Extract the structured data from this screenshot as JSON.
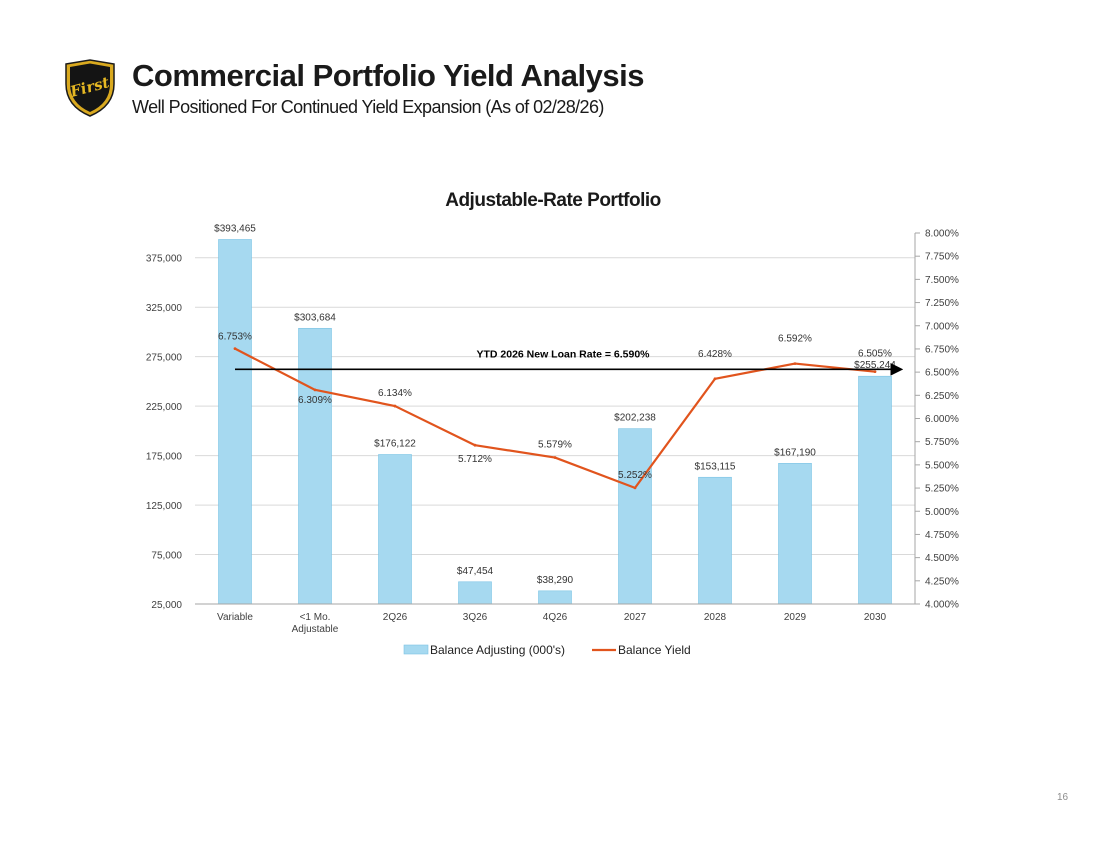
{
  "header": {
    "title": "Commercial Portfolio Yield Analysis",
    "subtitle": "Well Positioned For Continued Yield Expansion (As of 02/28/26)",
    "logo_text": "First"
  },
  "page_number": "16",
  "chart_data": {
    "type": "bar",
    "title": "Adjustable-Rate Portfolio",
    "categories": [
      "Variable",
      "<1 Mo.\nAdjustable",
      "2Q26",
      "3Q26",
      "4Q26",
      "2027",
      "2028",
      "2029",
      "2030"
    ],
    "series": [
      {
        "name": "Balance Adjusting (000's)",
        "type": "bar",
        "axis": "left",
        "color": "#a6d9f0",
        "values": [
          393465,
          303684,
          176122,
          47454,
          38290,
          202238,
          153115,
          167190,
          255244
        ],
        "labels": [
          "$393,465",
          "$303,684",
          "$176,122",
          "$47,454",
          "$38,290",
          "$202,238",
          "$153,115",
          "$167,190",
          "$255,244"
        ]
      },
      {
        "name": "Balance Yield",
        "type": "line",
        "axis": "right",
        "color": "#e1541d",
        "values": [
          6.753,
          6.309,
          6.134,
          5.712,
          5.579,
          5.252,
          6.428,
          6.592,
          6.505
        ],
        "labels": [
          "6.753%",
          "6.309%",
          "6.134%",
          "5.712%",
          "5.579%",
          "5.252%",
          "6.428%",
          "6.592%",
          "6.505%"
        ]
      }
    ],
    "left_axis": {
      "ylim": [
        25000,
        400000
      ],
      "ticks": [
        25000,
        75000,
        125000,
        175000,
        225000,
        275000,
        325000,
        375000
      ],
      "tick_labels": [
        "25,000",
        "75,000",
        "125,000",
        "175,000",
        "225,000",
        "275,000",
        "325,000",
        "375,000"
      ]
    },
    "right_axis": {
      "ylim": [
        4.0,
        8.0
      ],
      "ticks": [
        4.0,
        4.25,
        4.5,
        4.75,
        5.0,
        5.25,
        5.5,
        5.75,
        6.0,
        6.25,
        6.5,
        6.75,
        7.0,
        7.25,
        7.5,
        7.75,
        8.0
      ],
      "tick_labels": [
        "4.000%",
        "4.250%",
        "4.500%",
        "4.750%",
        "5.000%",
        "5.250%",
        "5.500%",
        "5.750%",
        "6.000%",
        "6.250%",
        "6.500%",
        "6.750%",
        "7.000%",
        "7.250%",
        "7.500%",
        "7.750%",
        "8.000%"
      ]
    },
    "annotation": {
      "text": "YTD 2026 New Loan Rate = 6.590%",
      "y_right": 6.53,
      "color": "#000000"
    },
    "grid": true,
    "legend_position": "bottom-center",
    "colors": {
      "bar_fill": "#a6d9f0",
      "bar_stroke": "#7cc4e4",
      "line": "#e1541d",
      "grid": "#d9d9d9",
      "axis": "#a6a6a6"
    }
  }
}
